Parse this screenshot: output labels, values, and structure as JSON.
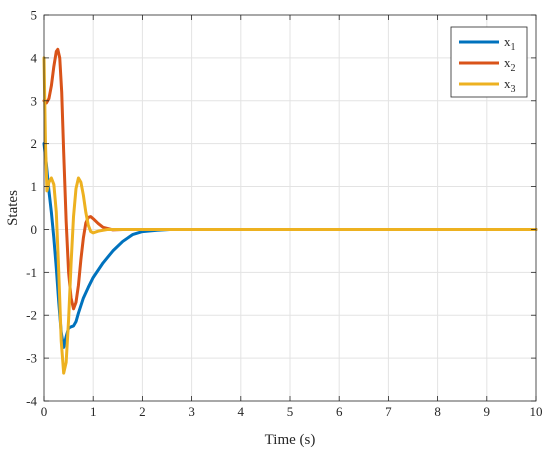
{
  "chart_data": {
    "type": "line",
    "xlabel": "Time  (s)",
    "ylabel": "States",
    "xlim": [
      0,
      10
    ],
    "ylim": [
      -4,
      5
    ],
    "xticks": [
      "0",
      "1",
      "2",
      "3",
      "4",
      "5",
      "6",
      "7",
      "8",
      "9",
      "10"
    ],
    "yticks": [
      "-4",
      "-3",
      "-2",
      "-1",
      "0",
      "1",
      "2",
      "3",
      "4",
      "5"
    ],
    "grid": true,
    "legend_position": "top-right",
    "series": [
      {
        "name": "x1",
        "base": "x",
        "sub": "1",
        "color": "#0072BD",
        "points": [
          [
            0,
            2.0
          ],
          [
            0.05,
            1.5
          ],
          [
            0.1,
            0.9
          ],
          [
            0.15,
            0.4
          ],
          [
            0.2,
            -0.2
          ],
          [
            0.25,
            -0.9
          ],
          [
            0.3,
            -1.7
          ],
          [
            0.35,
            -2.4
          ],
          [
            0.4,
            -2.75
          ],
          [
            0.45,
            -2.5
          ],
          [
            0.5,
            -2.3
          ],
          [
            0.55,
            -2.27
          ],
          [
            0.6,
            -2.25
          ],
          [
            0.65,
            -2.15
          ],
          [
            0.7,
            -1.95
          ],
          [
            0.8,
            -1.6
          ],
          [
            0.9,
            -1.35
          ],
          [
            1.0,
            -1.12
          ],
          [
            1.2,
            -0.78
          ],
          [
            1.4,
            -0.5
          ],
          [
            1.6,
            -0.28
          ],
          [
            1.8,
            -0.12
          ],
          [
            2.0,
            -0.05
          ],
          [
            2.3,
            -0.02
          ],
          [
            2.6,
            0
          ],
          [
            10,
            0
          ]
        ]
      },
      {
        "name": "x2",
        "base": "x",
        "sub": "2",
        "color": "#D95319",
        "points": [
          [
            0,
            3.0
          ],
          [
            0.05,
            2.95
          ],
          [
            0.1,
            3.05
          ],
          [
            0.15,
            3.35
          ],
          [
            0.2,
            3.8
          ],
          [
            0.25,
            4.15
          ],
          [
            0.28,
            4.2
          ],
          [
            0.32,
            4.0
          ],
          [
            0.36,
            3.2
          ],
          [
            0.4,
            1.8
          ],
          [
            0.45,
            0.2
          ],
          [
            0.5,
            -1.0
          ],
          [
            0.55,
            -1.6
          ],
          [
            0.6,
            -1.85
          ],
          [
            0.65,
            -1.7
          ],
          [
            0.7,
            -1.3
          ],
          [
            0.75,
            -0.7
          ],
          [
            0.8,
            -0.2
          ],
          [
            0.85,
            0.15
          ],
          [
            0.9,
            0.28
          ],
          [
            0.95,
            0.3
          ],
          [
            1.0,
            0.25
          ],
          [
            1.1,
            0.14
          ],
          [
            1.2,
            0.05
          ],
          [
            1.4,
            -0.01
          ],
          [
            1.6,
            0
          ],
          [
            10,
            0
          ]
        ]
      },
      {
        "name": "x3",
        "base": "x",
        "sub": "3",
        "color": "#EDB120",
        "points": [
          [
            0,
            4.0
          ],
          [
            0.03,
            2.0
          ],
          [
            0.06,
            0.9
          ],
          [
            0.1,
            1.1
          ],
          [
            0.15,
            1.2
          ],
          [
            0.2,
            1.05
          ],
          [
            0.25,
            0.4
          ],
          [
            0.3,
            -1.0
          ],
          [
            0.35,
            -2.6
          ],
          [
            0.4,
            -3.35
          ],
          [
            0.45,
            -3.1
          ],
          [
            0.5,
            -2.1
          ],
          [
            0.55,
            -0.8
          ],
          [
            0.6,
            0.3
          ],
          [
            0.65,
            0.95
          ],
          [
            0.7,
            1.2
          ],
          [
            0.75,
            1.1
          ],
          [
            0.8,
            0.8
          ],
          [
            0.85,
            0.4
          ],
          [
            0.9,
            0.1
          ],
          [
            0.95,
            -0.05
          ],
          [
            1.0,
            -0.08
          ],
          [
            1.1,
            -0.04
          ],
          [
            1.3,
            0
          ],
          [
            10,
            0
          ]
        ]
      }
    ]
  }
}
